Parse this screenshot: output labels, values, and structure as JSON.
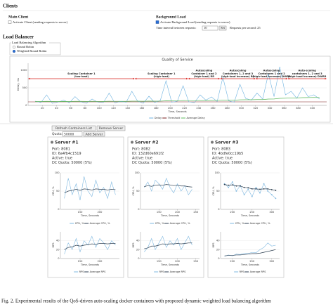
{
  "header": {
    "title": "Clients"
  },
  "main_client": {
    "title": "Main Client",
    "checkbox": "Activate Client (sending requests to server)"
  },
  "background_load": {
    "title": "Background Load",
    "checkbox": "Activate Background Load (sending requests to server)",
    "interval_label": "Time interval between requests:",
    "interval_value": "10",
    "set_button": "Set",
    "rps_label": "Requests per second: 25"
  },
  "load_balancer": {
    "title": "Load Balancer",
    "algorithm_legend": "Load Balancing Algorithm",
    "options": [
      "Round Robin",
      "Weighted Round Robin"
    ]
  },
  "controls": {
    "refresh": "Refresh Containers List",
    "remove": "Remove Server",
    "quota_label": "Quota:",
    "quota_value": "50000",
    "add": "Add Server"
  },
  "servers": [
    {
      "title": "Server #1",
      "port": "Port: 8081",
      "id": "ID: 6a4fb4c1519",
      "active": "Active: true",
      "quota": "DC Quota: 50000 (5%)"
    },
    {
      "title": "Server #2",
      "port": "Port: 8082",
      "id": "ID: 132d60e691f2",
      "active": "Active: true",
      "quota": "DC Quota: 50000 (5%)"
    },
    {
      "title": "Server #3",
      "port": "Port: 8083",
      "id": "ID: 4bdfe0cc19b5",
      "active": "Active: true",
      "quota": "DC Quota: 50000 (5%)"
    }
  ],
  "caption": "Fig. 2.   Experimental results of the QoS-driven auto-scaling docker containers with proposed dynamic weighted load balancing algorithm",
  "chart_data": [
    {
      "type": "line",
      "title": "Quality of Service",
      "x_label": "Time, Seconds",
      "y_label": "Delay, ms",
      "x": [
        10,
        18,
        26,
        34,
        42,
        50,
        58,
        66,
        74,
        82,
        90,
        98,
        106,
        114,
        122,
        130,
        138,
        146,
        154,
        162,
        170,
        178,
        186,
        194,
        202,
        210,
        218,
        226,
        234,
        242,
        250,
        258,
        266,
        274,
        282,
        290,
        298,
        306,
        314,
        322,
        330,
        338,
        346,
        354,
        362,
        370,
        378,
        386,
        394,
        402,
        410
      ],
      "series": [
        {
          "name": "Delay",
          "color": "#6fb3e0",
          "values": [
            120,
            80,
            300,
            60,
            90,
            150,
            70,
            250,
            100,
            60,
            180,
            90,
            80,
            350,
            70,
            110,
            90,
            400,
            120,
            60,
            260,
            80,
            140,
            700,
            90,
            120,
            560,
            100,
            80,
            300,
            150,
            240,
            110,
            800,
            130,
            90,
            600,
            200,
            150,
            350,
            180,
            900,
            250,
            1100,
            300,
            400,
            200,
            500,
            250,
            300,
            180
          ]
        },
        {
          "name": "Average Delay",
          "color": "#5cb85c",
          "values": [
            110,
            110,
            115,
            112,
            110,
            112,
            110,
            115,
            115,
            112,
            115,
            114,
            113,
            118,
            116,
            116,
            115,
            120,
            120,
            118,
            122,
            120,
            121,
            130,
            128,
            130,
            138,
            136,
            134,
            138,
            138,
            140,
            139,
            150,
            150,
            148,
            158,
            160,
            160,
            165,
            165,
            180,
            182,
            200,
            205,
            212,
            212,
            220,
            222,
            226,
            224
          ]
        }
      ],
      "threshold": {
        "name": "Threshold",
        "color": "#7a1f1f",
        "value": 100
      },
      "xlim": [
        0,
        420
      ],
      "xticks": [
        20,
        40,
        60,
        80,
        100,
        120,
        140,
        160,
        180,
        200,
        220,
        240,
        260,
        280,
        300,
        320,
        340,
        360,
        380,
        400
      ],
      "ylim": [
        0,
        1200
      ],
      "yticks": [
        0,
        500,
        1000
      ],
      "grid": true,
      "annotations": [
        {
          "lines": [
            "Scaling Container 1",
            "(low-load)"
          ],
          "x0": 0,
          "x1": 150,
          "color": "#d9201c"
        },
        {
          "lines": [
            "Scaling Container 1",
            "(high-load)"
          ],
          "x0": 150,
          "x1": 225,
          "color": "#d9201c"
        },
        {
          "lines": [
            "Autoscaling",
            "Container 1 and 2",
            "(high-load) RR"
          ],
          "x0": 225,
          "x1": 270,
          "color": "#d9201c"
        },
        {
          "lines": [
            "Autoscaling",
            "Containers 1, 2 and 3",
            "(high-load increase) RR"
          ],
          "x0": 270,
          "x1": 320,
          "color": "#d9201c"
        },
        {
          "lines": [
            "Autoscaling",
            "Containers 1 and 2",
            "(high-load increase) DWRR"
          ],
          "x0": 320,
          "x1": 365,
          "color": "#d9201c"
        },
        {
          "lines": [
            "Auto-scaling",
            "containers 1, 2 and 3",
            "(high-load increase) DWRR"
          ],
          "x0": 365,
          "x1": 420,
          "color": "#d9201c"
        }
      ]
    },
    {
      "type": "line",
      "x_label": "Time, Seconds",
      "y_label": "CPU, %",
      "x": [
        110,
        120,
        130,
        140,
        150,
        160,
        170,
        180,
        190,
        200,
        210,
        220,
        230,
        240
      ],
      "series": [
        {
          "name": "CPU, %",
          "color": "#7fb8e0",
          "values": [
            30,
            85,
            40,
            70,
            25,
            90,
            50,
            35,
            80,
            45,
            60,
            30,
            75,
            40
          ]
        },
        {
          "name": "Average CPU, %",
          "color": "#2c3e50",
          "values": [
            45,
            50,
            52,
            55,
            52,
            56,
            55,
            53,
            56,
            55,
            55,
            53,
            55,
            54
          ]
        }
      ],
      "xlim": [
        100,
        250
      ],
      "xticks": [
        150,
        200
      ],
      "ylim": [
        0,
        100
      ],
      "yticks": [
        0,
        50,
        100
      ],
      "grid": true
    },
    {
      "type": "line",
      "x_label": "Time, Seconds",
      "y_label": "RPS",
      "x": [
        110,
        120,
        130,
        140,
        150,
        160,
        170,
        180,
        190,
        200,
        210,
        220,
        230,
        240
      ],
      "series": [
        {
          "name": "RPS",
          "color": "#7fb8e0",
          "values": [
            10,
            35,
            20,
            45,
            15,
            40,
            30,
            50,
            25,
            45,
            35,
            20,
            40,
            30
          ]
        },
        {
          "name": "Average RPS",
          "color": "#2c3e50",
          "values": [
            20,
            25,
            26,
            30,
            28,
            30,
            31,
            33,
            32,
            34,
            34,
            33,
            34,
            34
          ]
        }
      ],
      "xlim": [
        100,
        250
      ],
      "xticks": [
        150,
        200
      ],
      "ylim": [
        0,
        60
      ],
      "yticks": [
        0,
        20,
        40
      ],
      "grid": true
    },
    {
      "type": "line",
      "x_label": "Time, Seconds",
      "y_label": "CPU, %",
      "x": [
        110,
        120,
        130,
        140,
        150,
        160,
        170,
        180,
        190,
        200,
        210,
        220,
        230,
        240
      ],
      "series": [
        {
          "name": "CPU, %",
          "color": "#7fb8e0",
          "values": [
            60,
            75,
            50,
            80,
            70,
            55,
            85,
            60,
            45,
            70,
            50,
            65,
            40,
            55
          ]
        },
        {
          "name": "Average CPU, %",
          "color": "#2c3e50",
          "values": [
            62,
            65,
            63,
            66,
            67,
            66,
            68,
            67,
            65,
            66,
            64,
            64,
            62,
            61
          ]
        }
      ],
      "xlim": [
        100,
        260
      ],
      "xticks": [
        150,
        200,
        250
      ],
      "ylim": [
        0,
        100
      ],
      "yticks": [
        0,
        50,
        100
      ],
      "grid": true
    },
    {
      "type": "line",
      "x_label": "Time, Seconds",
      "y_label": "RPS",
      "x": [
        110,
        120,
        130,
        140,
        150,
        160,
        170,
        180,
        190,
        200,
        210,
        220,
        230,
        240
      ],
      "series": [
        {
          "name": "RPS",
          "color": "#7fb8e0",
          "values": [
            15,
            25,
            45,
            20,
            35,
            50,
            25,
            40,
            30,
            45,
            20,
            35,
            50,
            30
          ]
        },
        {
          "name": "Average RPS",
          "color": "#2c3e50",
          "values": [
            22,
            24,
            28,
            28,
            30,
            33,
            32,
            33,
            33,
            34,
            33,
            34,
            35,
            35
          ]
        }
      ],
      "xlim": [
        100,
        260
      ],
      "xticks": [
        150,
        200,
        250
      ],
      "ylim": [
        0,
        60
      ],
      "yticks": [
        0,
        20,
        40
      ],
      "grid": true
    },
    {
      "type": "line",
      "x_label": "Time, Seconds",
      "y_label": "CPU, %",
      "markers": true,
      "x": [
        180,
        190,
        200,
        210,
        220,
        230,
        240,
        250,
        260,
        270,
        280,
        290,
        300,
        310
      ],
      "series": [
        {
          "name": "CPU, %",
          "color": "#7fb8e0",
          "values": [
            70,
            60,
            75,
            50,
            65,
            40,
            55,
            35,
            60,
            45,
            70,
            50,
            40,
            30
          ]
        },
        {
          "name": "Average CPU, %",
          "color": "#2c3e50",
          "values": [
            68,
            66,
            67,
            64,
            64,
            60,
            59,
            56,
            56,
            55,
            56,
            56,
            54,
            52
          ]
        }
      ],
      "xlim": [
        170,
        320
      ],
      "xticks": [
        200,
        250,
        300
      ],
      "ylim": [
        0,
        100
      ],
      "yticks": [
        0,
        50,
        100
      ],
      "grid": true
    },
    {
      "type": "line",
      "x_label": "Time, Seconds",
      "y_label": "RPS",
      "x": [
        180,
        190,
        200,
        210,
        220,
        230,
        240,
        250,
        260,
        270,
        280,
        290,
        300,
        310
      ],
      "series": [
        {
          "name": "RPS",
          "color": "#7fb8e0",
          "values": [
            5,
            8,
            6,
            10,
            9,
            12,
            11,
            14,
            13,
            20,
            25,
            35,
            28,
            30
          ]
        },
        {
          "name": "Average RPS",
          "color": "#2c3e50",
          "values": [
            6,
            7,
            7,
            8,
            8,
            9,
            10,
            11,
            11,
            12,
            14,
            16,
            18,
            20
          ]
        }
      ],
      "xlim": [
        170,
        320
      ],
      "xticks": [
        200,
        250,
        300
      ],
      "ylim": [
        0,
        60
      ],
      "yticks": [
        0,
        20,
        40
      ],
      "grid": true
    }
  ]
}
